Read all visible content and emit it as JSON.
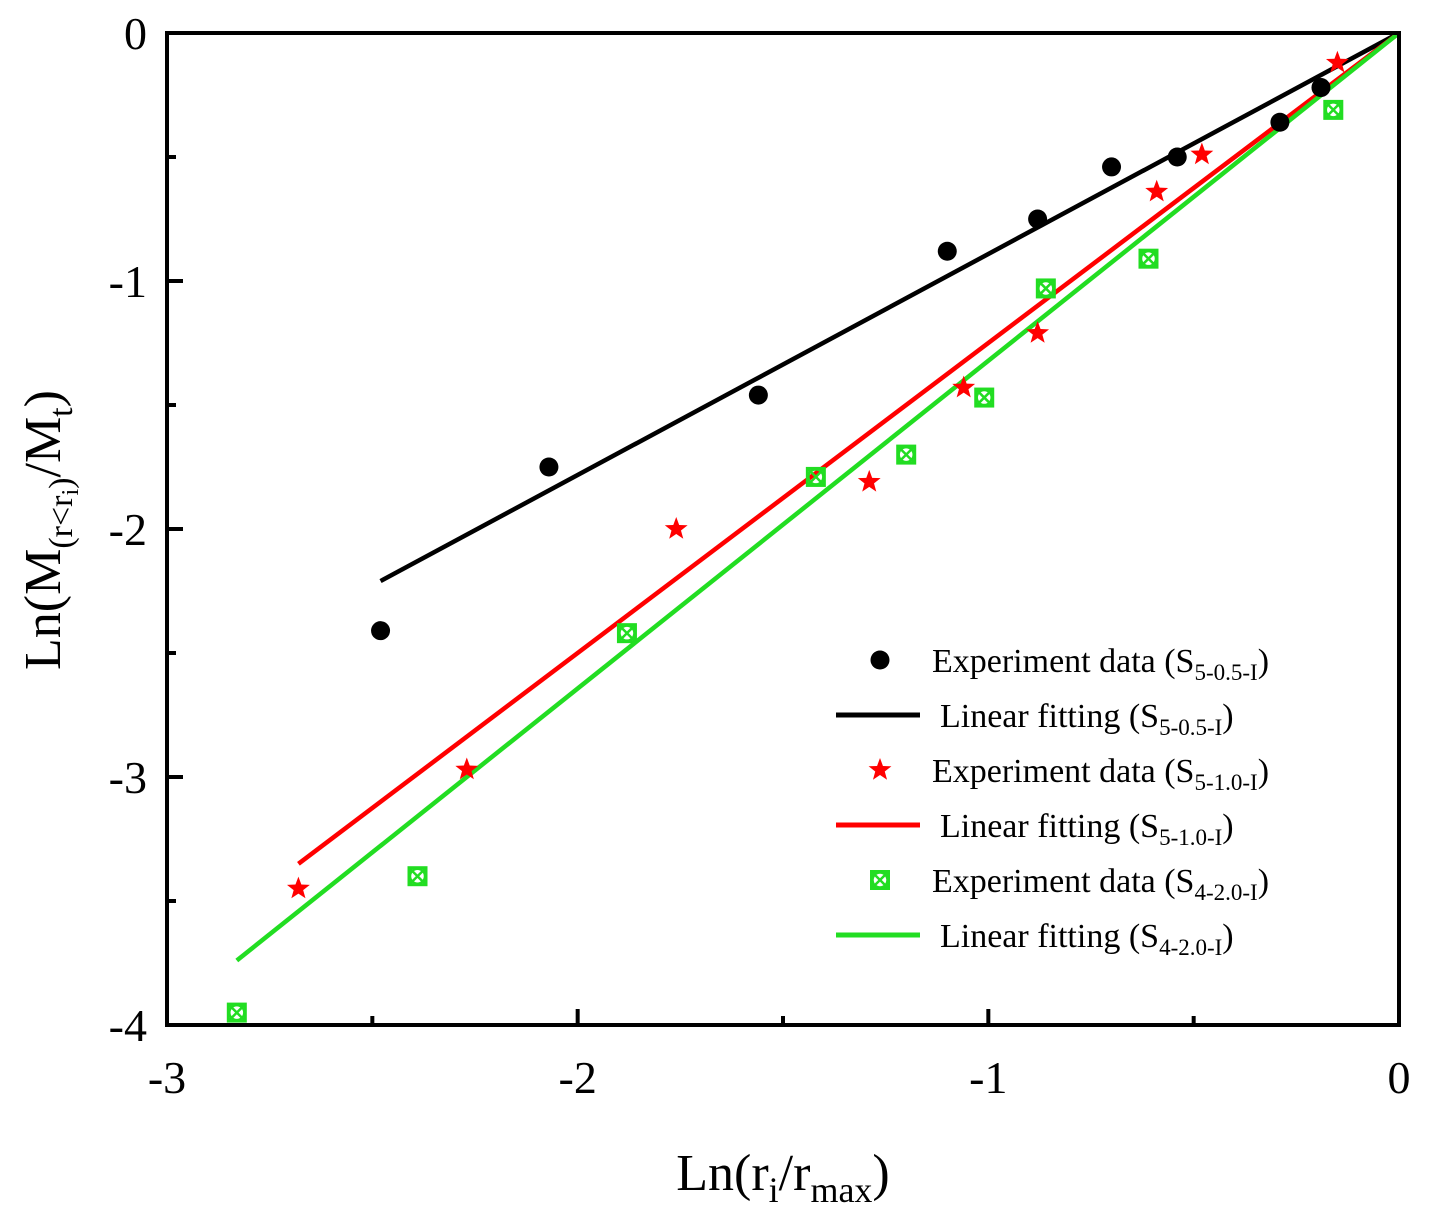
{
  "chart_data": {
    "type": "scatter",
    "title": "",
    "xlabel": {
      "prefix": "Ln(r",
      "sub1": "i",
      "mid": "/r",
      "sub2": "max",
      "suffix": ")"
    },
    "ylabel": {
      "prefix": "Ln(M",
      "sub_open": "(r<r",
      "subsub": "i",
      "sub_close": ")",
      "mid": "/M",
      "sub2": "t",
      "suffix": ")"
    },
    "xlim": [
      -3,
      0
    ],
    "ylim": [
      -4,
      0
    ],
    "x_ticks": [
      {
        "value": -3,
        "label": "-3"
      },
      {
        "value": -2,
        "label": "-2"
      },
      {
        "value": -1,
        "label": "-1"
      },
      {
        "value": 0,
        "label": "0"
      }
    ],
    "x_minor_ticks": [
      -2.5,
      -1.5,
      -0.5
    ],
    "y_ticks": [
      {
        "value": -4,
        "label": "-4"
      },
      {
        "value": -3,
        "label": "-3"
      },
      {
        "value": -2,
        "label": "-2"
      },
      {
        "value": -1,
        "label": "-1"
      },
      {
        "value": 0,
        "label": "0"
      }
    ],
    "y_minor_ticks": [
      -3.5,
      -2.5,
      -1.5,
      -0.5
    ],
    "grid": false,
    "legend_position": "bottom-right",
    "series": [
      {
        "name": "Experiment data (S5-0.5-I)",
        "kind": "scatter",
        "marker": "circle",
        "color": "#000000",
        "legend": {
          "text": "Experiment data (S",
          "sub": "5-0.5-I",
          "close": ")"
        },
        "points": [
          [
            -2.48,
            -2.41
          ],
          [
            -2.07,
            -1.75
          ],
          [
            -1.56,
            -1.46
          ],
          [
            -1.1,
            -0.88
          ],
          [
            -0.88,
            -0.75
          ],
          [
            -0.7,
            -0.54
          ],
          [
            -0.54,
            -0.5
          ],
          [
            -0.29,
            -0.36
          ],
          [
            -0.19,
            -0.22
          ]
        ]
      },
      {
        "name": "Linear fitting (S5-0.5-I)",
        "kind": "line",
        "color": "#000000",
        "legend": {
          "text": "Linear fitting (S",
          "sub": "5-0.5-I",
          "close": ")"
        },
        "points": [
          [
            -2.48,
            -2.21
          ],
          [
            0,
            0
          ]
        ]
      },
      {
        "name": "Experiment data (S5-1.0-I)",
        "kind": "scatter",
        "marker": "star",
        "color": "#ff0000",
        "legend": {
          "text": "Experiment data (S",
          "sub": "5-1.0-I",
          "close": ")"
        },
        "points": [
          [
            -2.68,
            -3.45
          ],
          [
            -2.27,
            -2.97
          ],
          [
            -1.76,
            -2.0
          ],
          [
            -1.29,
            -1.81
          ],
          [
            -1.06,
            -1.43
          ],
          [
            -0.88,
            -1.21
          ],
          [
            -0.59,
            -0.64
          ],
          [
            -0.48,
            -0.49
          ],
          [
            -0.15,
            -0.12
          ]
        ]
      },
      {
        "name": "Linear fitting (S5-1.0-I)",
        "kind": "line",
        "color": "#ff0000",
        "legend": {
          "text": "Linear fitting (S",
          "sub": "5-1.0-I",
          "close": ")"
        },
        "points": [
          [
            -2.68,
            -3.35
          ],
          [
            0,
            0
          ]
        ]
      },
      {
        "name": "Experiment data (S4-2.0-I)",
        "kind": "scatter",
        "marker": "crossed-square",
        "color": "#22dd22",
        "legend": {
          "text": "Experiment data (S",
          "sub": "4-2.0-I",
          "close": ")"
        },
        "points": [
          [
            -2.83,
            -3.95
          ],
          [
            -2.39,
            -3.4
          ],
          [
            -1.88,
            -2.42
          ],
          [
            -1.42,
            -1.79
          ],
          [
            -1.2,
            -1.7
          ],
          [
            -1.01,
            -1.47
          ],
          [
            -0.86,
            -1.03
          ],
          [
            -0.61,
            -0.91
          ],
          [
            -0.16,
            -0.31
          ]
        ]
      },
      {
        "name": "Linear fitting (S4-2.0-I)",
        "kind": "line",
        "color": "#22dd22",
        "legend": {
          "text": "Linear fitting (S",
          "sub": "4-2.0-I",
          "close": ")"
        },
        "points": [
          [
            -2.83,
            -3.74
          ],
          [
            0,
            0
          ]
        ]
      }
    ]
  }
}
